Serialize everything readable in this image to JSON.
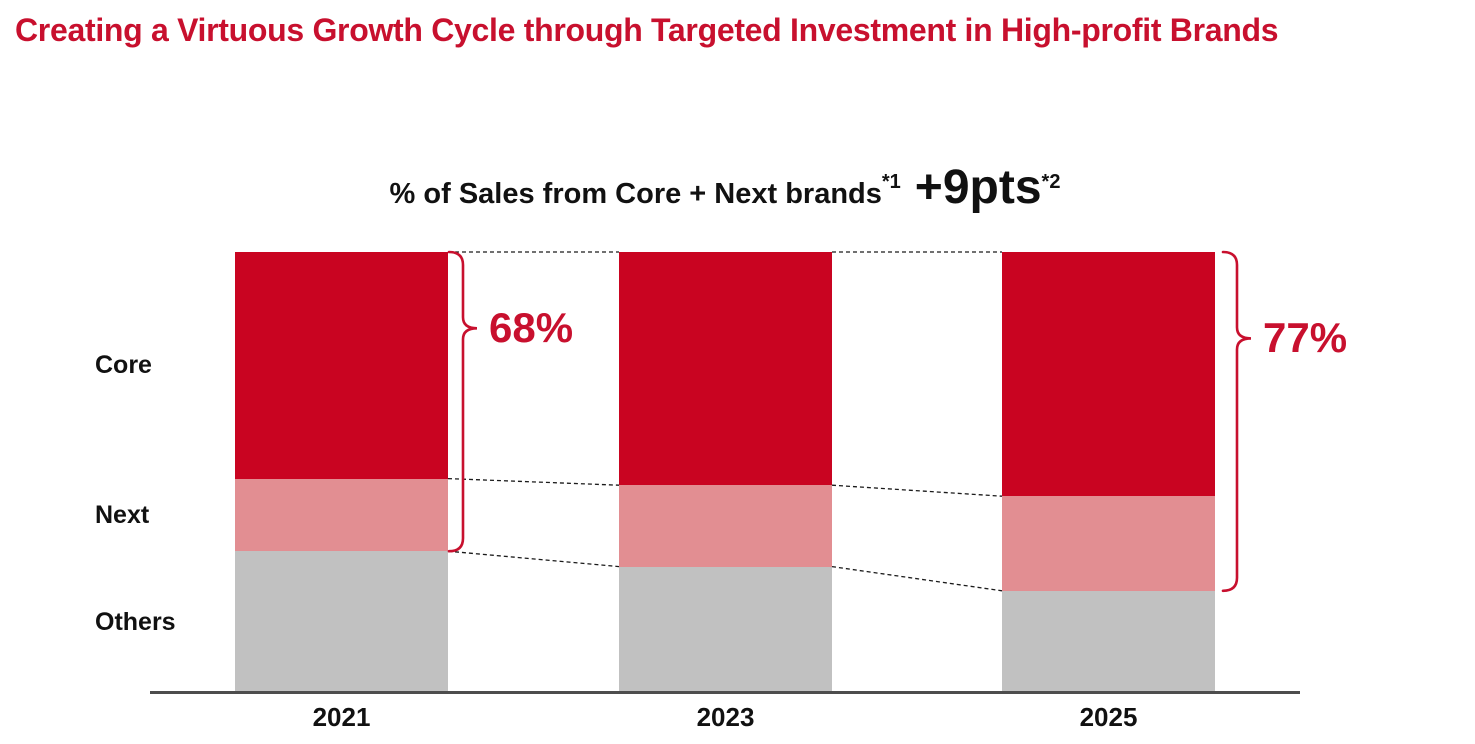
{
  "page_title": "Creating a Virtuous Growth Cycle through Targeted Investment in High-profit Brands",
  "colors": {
    "accent_red": "#C8102E",
    "series": [
      "#C90421",
      "#E28E92",
      "#C1C1C1"
    ],
    "axis": "#4D4D4D",
    "connector": "#1A1A1A",
    "text": "#111111"
  },
  "chart_data": {
    "type": "bar",
    "stacked": true,
    "title": "% of Sales from Core + Next brands",
    "title_footnote": "*1",
    "headline": "+9pts",
    "headline_footnote": "*2",
    "categories": [
      "2021",
      "2023",
      "2025"
    ],
    "row_labels": [
      "Core",
      "Next",
      "Others"
    ],
    "series": [
      {
        "name": "Core",
        "values": [
          51.5,
          53.0,
          55.5
        ]
      },
      {
        "name": "Next",
        "values": [
          16.5,
          18.5,
          21.5
        ]
      },
      {
        "name": "Others",
        "values": [
          32.0,
          28.5,
          23.0
        ]
      }
    ],
    "unit": "%",
    "ylim": [
      0,
      100
    ],
    "grid": false,
    "legend_position": "left-row-labels",
    "connectors_between_bars": true,
    "annotations": [
      {
        "category": "2021",
        "label": "68%",
        "value": 68,
        "spans": [
          "Core",
          "Next"
        ]
      },
      {
        "category": "2025",
        "label": "77%",
        "value": 77,
        "spans": [
          "Core",
          "Next"
        ]
      }
    ]
  }
}
